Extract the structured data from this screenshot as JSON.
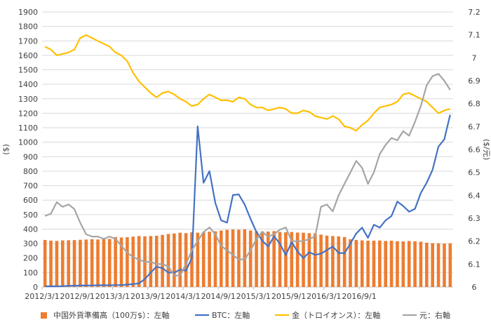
{
  "chart_data": {
    "type": "bar+line",
    "x_tick_labels": [
      "2012/3/1",
      "2012/9/1",
      "2013/3/1",
      "2013/9/1",
      "2014/3/1",
      "2014/9/1",
      "2015/3/1",
      "2015/9/1",
      "2016/3/1",
      "2016/9/1"
    ],
    "left_axis": {
      "label": "($)",
      "ylim": [
        0,
        1900
      ],
      "ticks": [
        0,
        100,
        200,
        300,
        400,
        500,
        600,
        700,
        800,
        900,
        1000,
        1100,
        1200,
        1300,
        1400,
        1500,
        1600,
        1700,
        1800,
        1900
      ]
    },
    "right_axis": {
      "label": "($/元)",
      "ylim": [
        6,
        7.2
      ],
      "ticks": [
        "6",
        "6.1",
        "6.2",
        "6.3",
        "6.4",
        "6.5",
        "6.6",
        "6.7",
        "6.8",
        "6.9",
        "7",
        "7.1",
        "7.2"
      ]
    },
    "gridlines": true,
    "series": [
      {
        "name": "中国外貨準備高（100万$）：左軸",
        "type": "bar",
        "axis": "left",
        "color": "#ED7D31",
        "values": [
          325,
          320,
          318,
          322,
          323,
          324,
          326,
          328,
          330,
          328,
          330,
          332,
          345,
          342,
          344,
          348,
          352,
          350,
          352,
          354,
          360,
          366,
          370,
          375,
          372,
          378,
          375,
          378,
          382,
          385,
          390,
          395,
          397,
          396,
          398,
          390,
          385,
          384,
          383,
          386,
          380,
          378,
          380,
          376,
          375,
          372,
          370,
          362,
          355,
          352,
          350,
          345,
          330,
          325,
          322,
          320,
          320,
          321,
          318,
          320,
          316,
          315,
          318,
          316,
          313,
          306,
          303,
          302,
          300,
          302
        ]
      },
      {
        "name": "BTC：左軸",
        "type": "line",
        "axis": "left",
        "color": "#4472C4",
        "values": [
          5,
          5,
          5,
          6,
          8,
          9,
          10,
          10,
          11,
          12,
          12,
          12,
          13,
          13,
          17,
          20,
          25,
          55,
          100,
          140,
          130,
          100,
          100,
          120,
          112,
          200,
          1110,
          720,
          800,
          580,
          460,
          445,
          635,
          640,
          570,
          470,
          380,
          320,
          280,
          350,
          300,
          220,
          310,
          245,
          200,
          240,
          222,
          230,
          255,
          280,
          235,
          233,
          300,
          370,
          410,
          340,
          430,
          410,
          460,
          490,
          590,
          560,
          520,
          540,
          650,
          720,
          810,
          970,
          1020,
          1190
        ]
      },
      {
        "name": "金（トロイオンス）：左軸",
        "type": "line",
        "axis": "left",
        "color": "#FFC000",
        "values": [
          1660,
          1640,
          1600,
          1610,
          1620,
          1640,
          1720,
          1740,
          1720,
          1700,
          1680,
          1660,
          1620,
          1600,
          1560,
          1480,
          1420,
          1380,
          1340,
          1310,
          1340,
          1350,
          1330,
          1300,
          1280,
          1250,
          1260,
          1300,
          1330,
          1310,
          1290,
          1290,
          1280,
          1310,
          1300,
          1260,
          1240,
          1240,
          1220,
          1230,
          1240,
          1230,
          1200,
          1200,
          1220,
          1210,
          1180,
          1170,
          1160,
          1180,
          1160,
          1110,
          1100,
          1080,
          1120,
          1150,
          1200,
          1240,
          1250,
          1260,
          1280,
          1330,
          1340,
          1320,
          1300,
          1280,
          1240,
          1200,
          1220,
          1230
        ]
      },
      {
        "name": "元：右軸",
        "type": "line",
        "axis": "right",
        "color": "#A5A5A5",
        "values": [
          6.31,
          6.32,
          6.37,
          6.35,
          6.36,
          6.34,
          6.28,
          6.23,
          6.22,
          6.22,
          6.21,
          6.22,
          6.21,
          6.18,
          6.15,
          6.13,
          6.12,
          6.11,
          6.11,
          6.1,
          6.1,
          6.09,
          6.05,
          6.05,
          6.1,
          6.16,
          6.2,
          6.24,
          6.26,
          6.23,
          6.18,
          6.16,
          6.14,
          6.12,
          6.12,
          6.16,
          6.21,
          6.24,
          6.22,
          6.23,
          6.25,
          6.26,
          6.2,
          6.2,
          6.2,
          6.21,
          6.22,
          6.35,
          6.36,
          6.33,
          6.4,
          6.45,
          6.5,
          6.55,
          6.52,
          6.45,
          6.5,
          6.58,
          6.62,
          6.65,
          6.64,
          6.68,
          6.66,
          6.72,
          6.79,
          6.88,
          6.92,
          6.93,
          6.9,
          6.86
        ]
      }
    ],
    "legend": {
      "position": "bottom",
      "items": [
        "中国外貨準備高（100万$）：左軸",
        "BTC：左軸",
        "金（トロイオンス）：左軸",
        "元：右軸"
      ]
    }
  }
}
